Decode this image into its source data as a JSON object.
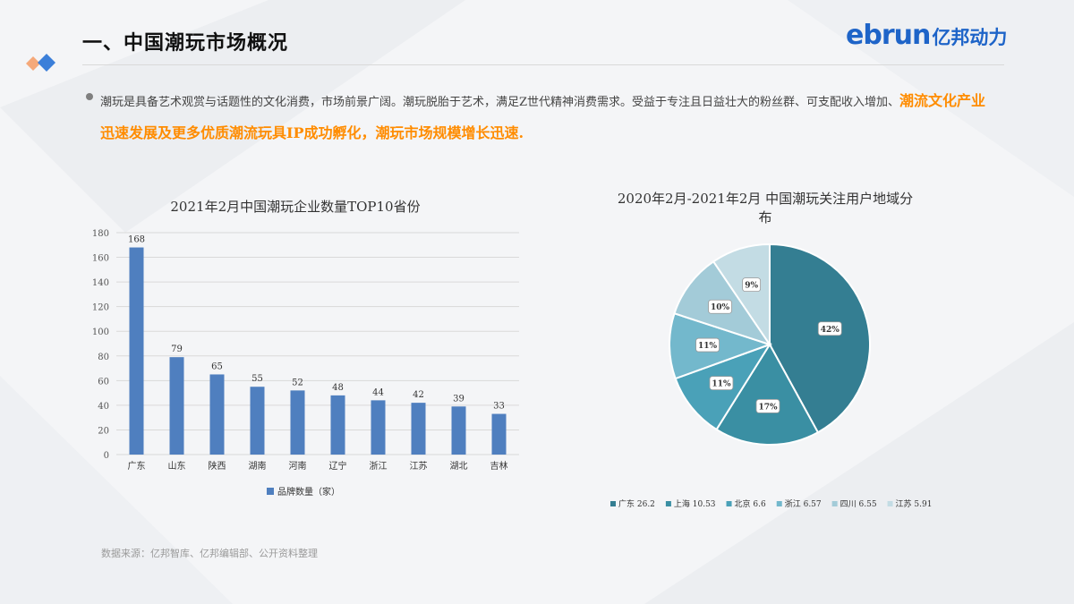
{
  "header": {
    "title": "一、中国潮玩市场概况",
    "logo_en": "ebrun",
    "logo_cn": "亿邦动力"
  },
  "intro": {
    "text_normal_1": "潮玩是具备艺术观赏与话题性的文化消费，市场前景广阔。潮玩脱胎于艺术，满足Z世代精神消费需求。受益于专注且日益壮大的粉丝群、可支配收入增加、",
    "text_highlight": "潮流文化产业迅速发展及更多优质潮流玩具IP成功孵化，潮玩市场规模增长迅速",
    "text_end": "."
  },
  "chart_data": [
    {
      "type": "bar",
      "title": "2021年2月中国潮玩企业数量TOP10省份",
      "categories": [
        "广东",
        "山东",
        "陕西",
        "湖南",
        "河南",
        "辽宁",
        "浙江",
        "江苏",
        "湖北",
        "吉林"
      ],
      "series": [
        {
          "name": "品牌数量（家）",
          "values": [
            168,
            79,
            65,
            55,
            52,
            48,
            44,
            42,
            39,
            33
          ]
        }
      ],
      "data_labels": [
        "168",
        "79",
        "65",
        "55",
        "52",
        "48",
        "44",
        "42",
        "39",
        "33"
      ],
      "ylim": [
        0,
        180
      ],
      "yticks": [
        0,
        20,
        40,
        60,
        80,
        100,
        120,
        140,
        160,
        180
      ],
      "grid": true,
      "legend": "bottom",
      "color": "#4f7fbf"
    },
    {
      "type": "pie",
      "title_line1": "2020年2月-2021年2月 中国潮玩关注用户地域分",
      "title_line2": "布",
      "slices": [
        {
          "label": "广东",
          "value": 26.2,
          "pct_label": "42%",
          "color": "#347e92"
        },
        {
          "label": "上海",
          "value": 10.53,
          "pct_label": "17%",
          "color": "#3a8fa3"
        },
        {
          "label": "北京",
          "value": 6.6,
          "pct_label": "11%",
          "color": "#4aa1b8"
        },
        {
          "label": "浙江",
          "value": 6.57,
          "pct_label": "11%",
          "color": "#73b8cc"
        },
        {
          "label": "四川",
          "value": 6.55,
          "pct_label": "10%",
          "color": "#a3cbd8"
        },
        {
          "label": "江苏",
          "value": 5.91,
          "pct_label": "9%",
          "color": "#c3dce4"
        }
      ],
      "legend_items": [
        "广东 26.2",
        "上海 10.53",
        "北京 6.6",
        "浙江 6.57",
        "四川 6.55",
        "江苏 5.91"
      ],
      "legend": "bottom"
    }
  ],
  "footer": {
    "source": "数据来源：亿邦智库、亿邦编辑部、公开资料整理"
  }
}
